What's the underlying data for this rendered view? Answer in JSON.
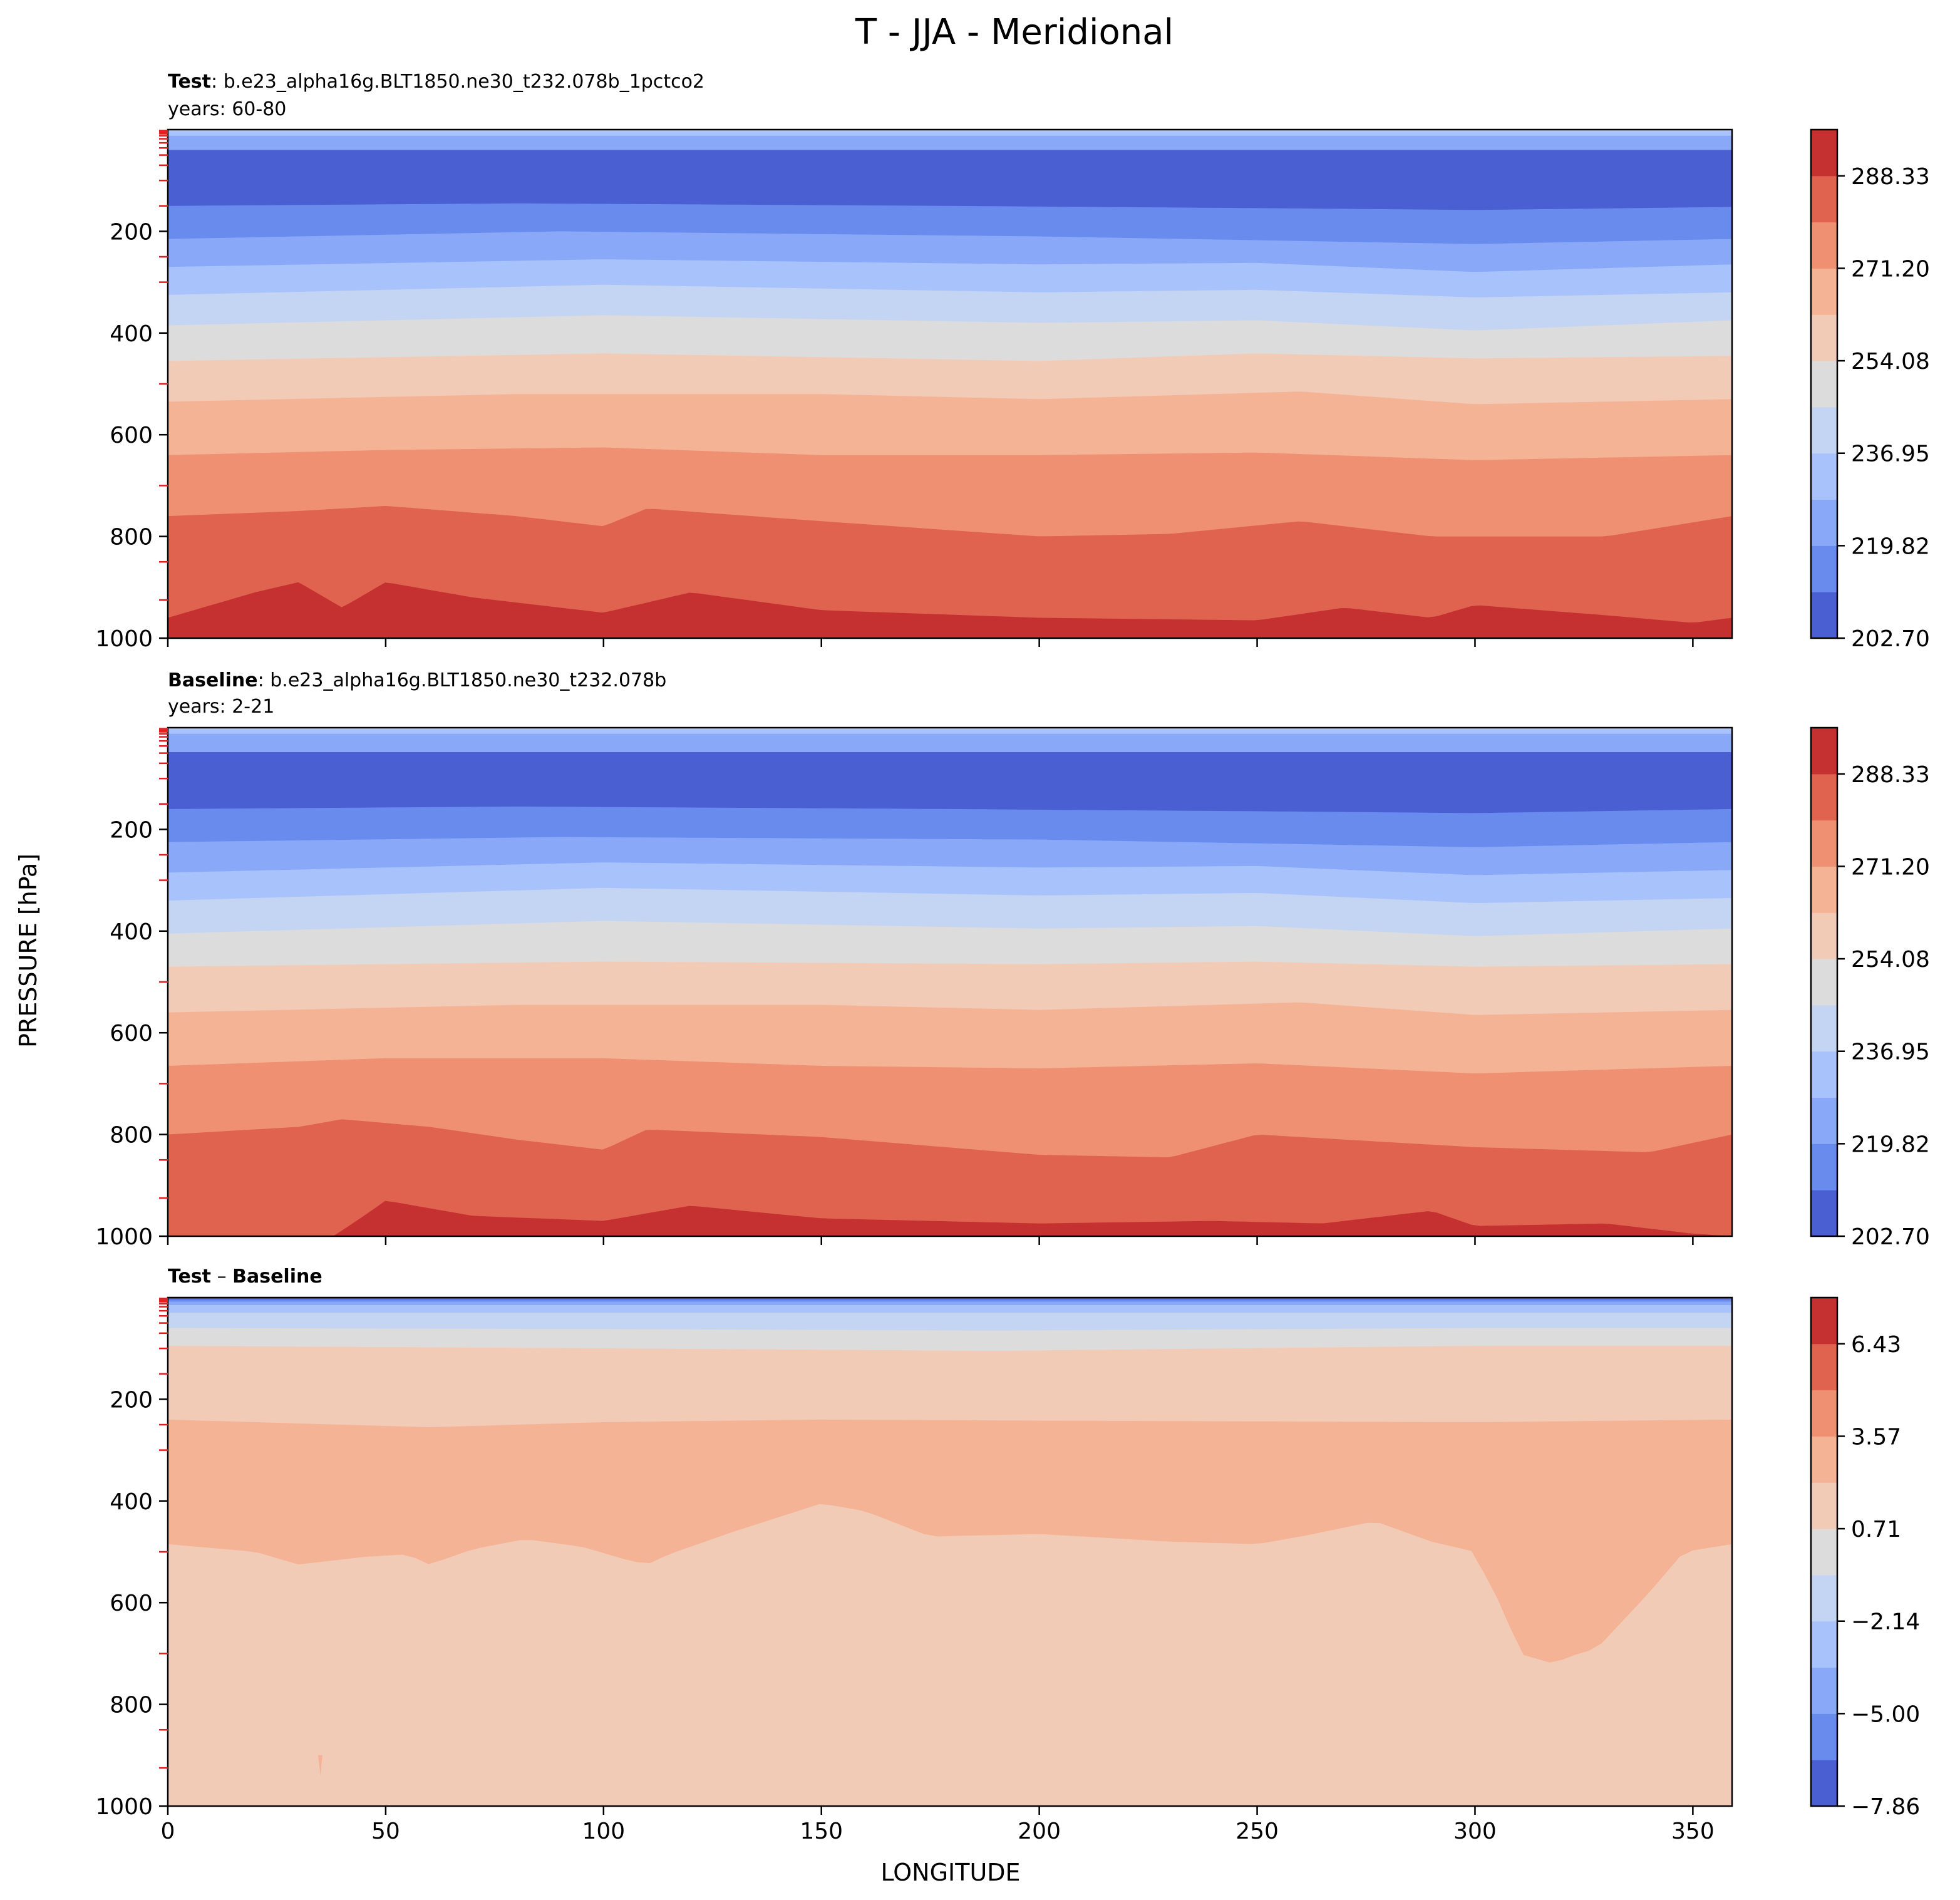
{
  "figure": {
    "title": "T - JJA - Meridional",
    "ylabel": "PRESSURE [hPa]",
    "xlabel": "LONGITUDE"
  },
  "chart_data": [
    {
      "type": "contourf",
      "id": "test",
      "case_label": "Test",
      "case_sep": ": ",
      "case_name": "b.e23_alpha16g.BLT1850.ne30_t232.078b_1pctco2",
      "years": "years: 60-80",
      "xlim": [
        0,
        359
      ],
      "ylim": [
        1000,
        0
      ],
      "x_ticks": [
        0,
        50,
        100,
        150,
        200,
        250,
        300,
        350
      ],
      "y_ticks": [
        200,
        400,
        600,
        800,
        1000
      ],
      "y_tick_labels": [
        "200",
        "400",
        "600",
        "800",
        "1000"
      ],
      "x_tick_labels": [],
      "levels": [
        202.7,
        211.26,
        219.82,
        228.39,
        236.95,
        245.51,
        254.08,
        262.64,
        271.2,
        279.76,
        288.33,
        296.89
      ],
      "colorbar_ticks": [
        "202.70",
        "219.82",
        "236.95",
        "254.08",
        "271.20",
        "288.33"
      ],
      "colors": [
        "#4a5fd1",
        "#6a8bee",
        "#89a9f8",
        "#a8c2fb",
        "#c4d5f3",
        "#dcdcdc",
        "#f2cbb7",
        "#f5b396",
        "#f09072",
        "#df634e",
        "#c53030"
      ],
      "contour_boundaries_hPa": [
        {
          "x": [
            0,
            359
          ],
          "p": [
            3,
            3
          ]
        },
        {
          "x": [
            0,
            359
          ],
          "p": [
            12,
            12
          ]
        },
        {
          "x": [
            0,
            359
          ],
          "p": [
            40,
            40
          ]
        },
        {
          "x": [
            0,
            80,
            180,
            260,
            300,
            359
          ],
          "p": [
            150,
            145,
            150,
            155,
            158,
            152
          ]
        },
        {
          "x": [
            0,
            90,
            200,
            300,
            359
          ],
          "p": [
            215,
            200,
            210,
            225,
            215
          ]
        },
        {
          "x": [
            0,
            100,
            200,
            250,
            300,
            359
          ],
          "p": [
            270,
            255,
            265,
            262,
            280,
            265
          ]
        },
        {
          "x": [
            0,
            100,
            200,
            250,
            300,
            359
          ],
          "p": [
            325,
            305,
            320,
            315,
            330,
            320
          ]
        },
        {
          "x": [
            0,
            100,
            200,
            250,
            300,
            359
          ],
          "p": [
            385,
            365,
            380,
            375,
            395,
            375
          ]
        },
        {
          "x": [
            0,
            100,
            200,
            250,
            300,
            359
          ],
          "p": [
            455,
            440,
            455,
            440,
            450,
            445
          ]
        },
        {
          "x": [
            0,
            80,
            150,
            200,
            260,
            300,
            359
          ],
          "p": [
            535,
            520,
            520,
            530,
            515,
            540,
            530
          ]
        },
        {
          "x": [
            0,
            50,
            100,
            150,
            200,
            250,
            300,
            359
          ],
          "p": [
            640,
            630,
            625,
            640,
            640,
            635,
            650,
            640
          ]
        },
        {
          "x": [
            0,
            30,
            50,
            80,
            100,
            110,
            150,
            200,
            230,
            260,
            290,
            330,
            359
          ],
          "p": [
            760,
            750,
            740,
            760,
            780,
            745,
            770,
            800,
            795,
            770,
            800,
            800,
            760
          ]
        },
        {
          "x": [
            0,
            20,
            30,
            40,
            50,
            70,
            100,
            120,
            150,
            200,
            250,
            270,
            290,
            300,
            330,
            350,
            359
          ],
          "p": [
            960,
            910,
            890,
            940,
            890,
            920,
            950,
            910,
            945,
            960,
            965,
            940,
            960,
            935,
            955,
            970,
            960
          ]
        }
      ]
    },
    {
      "type": "contourf",
      "id": "baseline",
      "case_label": "Baseline",
      "case_sep": ": ",
      "case_name": "b.e23_alpha16g.BLT1850.ne30_t232.078b",
      "years": "years: 2-21",
      "xlim": [
        0,
        359
      ],
      "ylim": [
        1000,
        0
      ],
      "x_ticks": [
        0,
        50,
        100,
        150,
        200,
        250,
        300,
        350
      ],
      "y_ticks": [
        200,
        400,
        600,
        800,
        1000
      ],
      "y_tick_labels": [
        "200",
        "400",
        "600",
        "800",
        "1000"
      ],
      "x_tick_labels": [],
      "levels": [
        202.7,
        211.26,
        219.82,
        228.39,
        236.95,
        245.51,
        254.08,
        262.64,
        271.2,
        279.76,
        288.33,
        296.89
      ],
      "colorbar_ticks": [
        "202.70",
        "219.82",
        "236.95",
        "254.08",
        "271.20",
        "288.33"
      ],
      "colors": [
        "#4a5fd1",
        "#6a8bee",
        "#89a9f8",
        "#a8c2fb",
        "#c4d5f3",
        "#dcdcdc",
        "#f2cbb7",
        "#f5b396",
        "#f09072",
        "#df634e",
        "#c53030"
      ],
      "contour_boundaries_hPa": [
        {
          "x": [
            0,
            359
          ],
          "p": [
            3,
            3
          ]
        },
        {
          "x": [
            0,
            359
          ],
          "p": [
            12,
            12
          ]
        },
        {
          "x": [
            0,
            359
          ],
          "p": [
            48,
            48
          ]
        },
        {
          "x": [
            0,
            80,
            180,
            260,
            300,
            359
          ],
          "p": [
            160,
            155,
            160,
            165,
            168,
            160
          ]
        },
        {
          "x": [
            0,
            90,
            200,
            300,
            359
          ],
          "p": [
            225,
            215,
            220,
            235,
            225
          ]
        },
        {
          "x": [
            0,
            100,
            200,
            250,
            300,
            359
          ],
          "p": [
            285,
            265,
            275,
            272,
            290,
            280
          ]
        },
        {
          "x": [
            0,
            100,
            200,
            250,
            300,
            359
          ],
          "p": [
            340,
            315,
            330,
            325,
            345,
            335
          ]
        },
        {
          "x": [
            0,
            100,
            200,
            250,
            300,
            359
          ],
          "p": [
            405,
            380,
            395,
            390,
            410,
            395
          ]
        },
        {
          "x": [
            0,
            100,
            200,
            250,
            300,
            359
          ],
          "p": [
            470,
            460,
            465,
            460,
            470,
            465
          ]
        },
        {
          "x": [
            0,
            80,
            150,
            200,
            260,
            300,
            359
          ],
          "p": [
            560,
            545,
            545,
            555,
            540,
            565,
            555
          ]
        },
        {
          "x": [
            0,
            50,
            100,
            150,
            200,
            250,
            300,
            359
          ],
          "p": [
            665,
            650,
            650,
            665,
            670,
            660,
            680,
            665
          ]
        },
        {
          "x": [
            0,
            30,
            40,
            60,
            80,
            100,
            110,
            150,
            200,
            230,
            250,
            270,
            300,
            340,
            359
          ],
          "p": [
            800,
            785,
            770,
            785,
            810,
            830,
            790,
            805,
            840,
            845,
            800,
            810,
            825,
            835,
            800
          ]
        },
        {
          "x": [
            0,
            38,
            45,
            50,
            70,
            100,
            120,
            150,
            200,
            240,
            265,
            290,
            300,
            330,
            350,
            359
          ],
          "p": [
            1000,
            1000,
            960,
            930,
            960,
            970,
            940,
            965,
            975,
            970,
            975,
            950,
            980,
            975,
            995,
            1000
          ]
        }
      ]
    },
    {
      "type": "contourf",
      "id": "diff",
      "case_label": "Test",
      "case_sep": " – ",
      "case_label_2": "Baseline",
      "xlim": [
        0,
        359
      ],
      "ylim": [
        1000,
        0
      ],
      "x_ticks": [
        0,
        50,
        100,
        150,
        200,
        250,
        300,
        350
      ],
      "x_tick_labels": [
        "0",
        "50",
        "100",
        "150",
        "200",
        "250",
        "300",
        "350"
      ],
      "y_ticks": [
        200,
        400,
        600,
        800,
        1000
      ],
      "y_tick_labels": [
        "200",
        "400",
        "600",
        "800",
        "1000"
      ],
      "levels": [
        -7.86,
        -6.43,
        -5.0,
        -3.57,
        -2.14,
        -0.71,
        0.71,
        2.14,
        3.57,
        5.0,
        6.43,
        7.86
      ],
      "colorbar_ticks": [
        "−7.86",
        "−5.00",
        "−2.14",
        "0.71",
        "3.57",
        "6.43"
      ],
      "colors": [
        "#4a5fd1",
        "#6a8bee",
        "#89a9f8",
        "#a8c2fb",
        "#c4d5f3",
        "#dcdcdc",
        "#f2cbb7",
        "#f5b396",
        "#f09072",
        "#df634e",
        "#c53030"
      ],
      "contour_boundaries_hPa": [
        {
          "x": [
            0,
            359
          ],
          "p": [
            4,
            4
          ]
        },
        {
          "x": [
            0,
            359
          ],
          "p": [
            8,
            8
          ]
        },
        {
          "x": [
            0,
            359
          ],
          "p": [
            15,
            15
          ]
        },
        {
          "x": [
            0,
            359
          ],
          "p": [
            30,
            30
          ]
        },
        {
          "x": [
            0,
            100,
            190,
            300,
            359
          ],
          "p": [
            60,
            62,
            65,
            60,
            60
          ]
        },
        {
          "x": [
            0,
            100,
            190,
            300,
            359
          ],
          "p": [
            95,
            100,
            105,
            95,
            95
          ]
        },
        {
          "x": [
            0,
            40,
            60,
            100,
            150,
            200,
            300,
            359
          ],
          "p": [
            240,
            250,
            255,
            245,
            240,
            242,
            245,
            240
          ]
        }
      ],
      "lower_boundary_level": {
        "x": [
          0,
          20,
          30,
          45,
          55,
          60,
          70,
          82,
          95,
          105,
          110,
          115,
          130,
          150,
          160,
          175,
          200,
          230,
          250,
          260,
          277,
          290,
          300,
          303,
          307,
          310,
          318,
          322,
          328,
          340,
          348,
          359
        ],
        "p": [
          485,
          500,
          525,
          510,
          505,
          525,
          495,
          475,
          490,
          515,
          525,
          505,
          460,
          405,
          420,
          470,
          465,
          480,
          485,
          470,
          440,
          480,
          500,
          560,
          620,
          700,
          720,
          705,
          690,
          580,
          500,
          485
        ]
      }
    }
  ]
}
